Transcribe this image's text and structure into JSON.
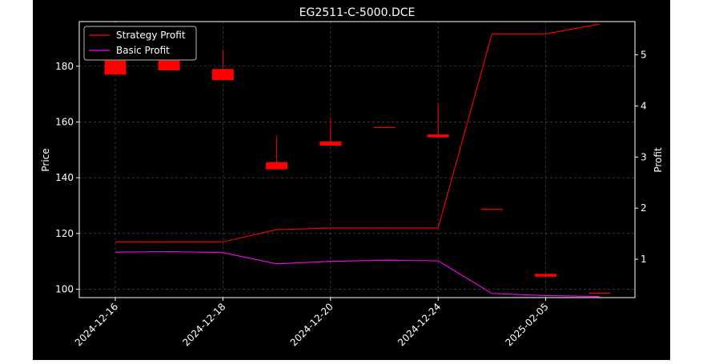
{
  "chart_data": {
    "type": "candlestick+line",
    "title": "EG2511-C-5000.DCE",
    "xlabel": "",
    "ylabel_left": "Price",
    "ylabel_right": "Profit",
    "x_tick_labels": [
      "2024-12-16",
      "2024-12-18",
      "2024-12-20",
      "2024-12-24",
      "2025-02-05"
    ],
    "x_tick_index": [
      0,
      2,
      4,
      6,
      8
    ],
    "ylim_left": [
      97,
      196
    ],
    "yticks_left": [
      100,
      120,
      140,
      160,
      180
    ],
    "ylim_right": [
      0.25,
      5.65
    ],
    "yticks_right": [
      1,
      2,
      3,
      4,
      5
    ],
    "grid": true,
    "legend_position": "top-left",
    "candles": [
      {
        "i": 0,
        "open": 182,
        "close": 177,
        "high": 182,
        "low": 177
      },
      {
        "i": 1,
        "open": 182,
        "close": 178.5,
        "high": 182,
        "low": 178.5
      },
      {
        "i": 2,
        "open": 179,
        "close": 175,
        "high": 186,
        "low": 175
      },
      {
        "i": 3,
        "open": 145.5,
        "close": 143,
        "high": 155,
        "low": 143
      },
      {
        "i": 4,
        "open": 153,
        "close": 151.5,
        "high": 161.5,
        "low": 151.5
      },
      {
        "i": 5,
        "open": 158.2,
        "close": 158,
        "high": 158.2,
        "low": 158
      },
      {
        "i": 6,
        "open": 155.5,
        "close": 154.5,
        "high": 166.5,
        "low": 154.5
      },
      {
        "i": 7,
        "open": 128.8,
        "close": 128.6,
        "high": 128.8,
        "low": 128.6
      },
      {
        "i": 8,
        "open": 105.5,
        "close": 104.5,
        "high": 105.5,
        "low": 104.5
      },
      {
        "i": 9,
        "open": 98.8,
        "close": 98.6,
        "high": 98.8,
        "low": 98.6
      }
    ],
    "series": [
      {
        "name": "Strategy Profit",
        "color": "#ff0000",
        "values": [
          1.34,
          1.34,
          1.34,
          1.58,
          1.61,
          1.61,
          1.61,
          5.41,
          5.41,
          5.6
        ]
      },
      {
        "name": "Basic Profit",
        "color": "#ff00ff",
        "values": [
          1.14,
          1.15,
          1.13,
          0.91,
          0.96,
          0.98,
          0.97,
          0.33,
          0.29,
          0.27
        ]
      }
    ]
  },
  "colors": {
    "background": "#000000",
    "candle": "#ff0000",
    "grid": "#b0b0b0",
    "axis": "#ffffff"
  }
}
